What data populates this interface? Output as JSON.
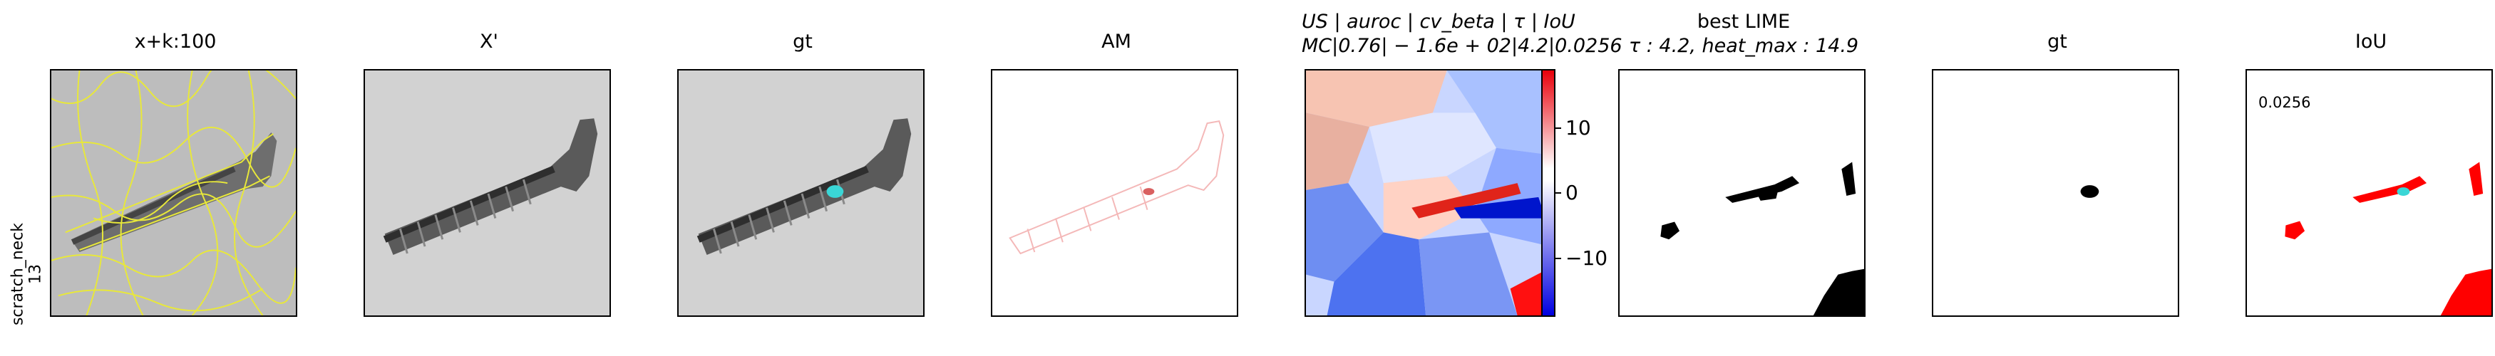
{
  "row_label": {
    "line1": "scratch_neck",
    "line2": "13"
  },
  "panels": [
    {
      "title": "x+k:100"
    },
    {
      "title": "X'"
    },
    {
      "title": "gt"
    },
    {
      "title": "AM"
    },
    {
      "title_line1": "US | auroc | cv_beta | τ | IoU",
      "title_line2": "MC|0.76| − 1.6e + 02|4.2|0.0256"
    },
    {
      "title_line1": "best LIME",
      "title_line2": "τ : 4.2, heat_max : 14.9"
    },
    {
      "title": "gt"
    },
    {
      "title": "IoU",
      "annotation": "0.0256"
    }
  ],
  "colorbar": {
    "ticks": [
      "10",
      "0",
      "−10"
    ],
    "high_color": "#e8000b",
    "low_color": "#0000e0"
  },
  "colors": {
    "contour": "#e8e83a",
    "mask_cyan": "#3ad6d6",
    "iou_red": "#ff0000"
  }
}
